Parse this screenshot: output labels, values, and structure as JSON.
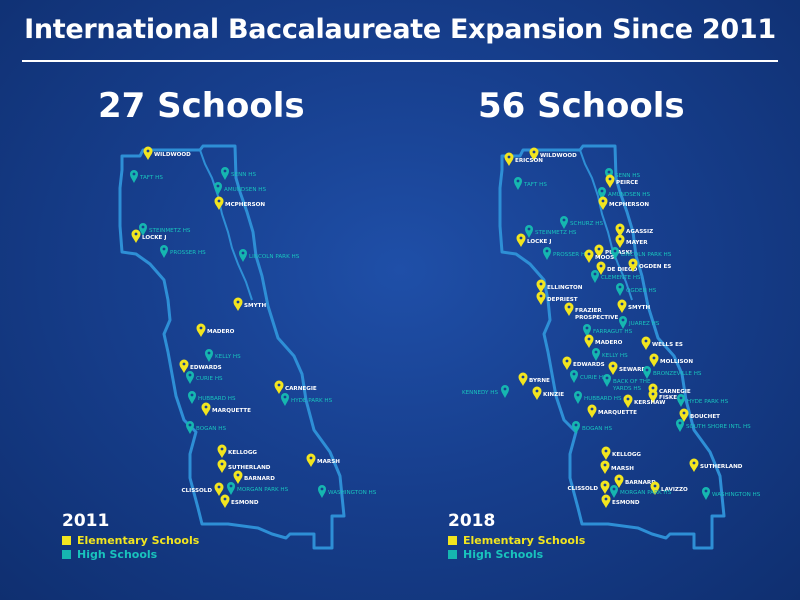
{
  "title": "International Baccalaureate Expansion Since 2011",
  "colors": {
    "elementary": "#f2e51f",
    "high": "#16b6b0",
    "outline": "#2e8fd6",
    "background": "#173f8e"
  },
  "legend": {
    "elementary": "Elementary Schools",
    "high": "High Schools"
  },
  "maps": [
    {
      "year": "2011",
      "count_label": "27 Schools",
      "schools": [
        {
          "name": "WILDWOOD",
          "type": "es"
        },
        {
          "name": "TAFT HS",
          "type": "hs"
        },
        {
          "name": "SENN HS",
          "type": "hs"
        },
        {
          "name": "AMUNDSEN HS",
          "type": "hs"
        },
        {
          "name": "MCPHERSON",
          "type": "es"
        },
        {
          "name": "STEINMETZ HS",
          "type": "hs"
        },
        {
          "name": "LOCKE J",
          "type": "es"
        },
        {
          "name": "PROSSER HS",
          "type": "hs"
        },
        {
          "name": "LINCOLN PARK HS",
          "type": "hs"
        },
        {
          "name": "SMYTH",
          "type": "es"
        },
        {
          "name": "MADERO",
          "type": "es"
        },
        {
          "name": "KELLY HS",
          "type": "hs"
        },
        {
          "name": "EDWARDS",
          "type": "es"
        },
        {
          "name": "CURIE HS",
          "type": "hs"
        },
        {
          "name": "CARNEGIE",
          "type": "es"
        },
        {
          "name": "HUBBARD HS",
          "type": "hs"
        },
        {
          "name": "HYDE PARK HS",
          "type": "hs"
        },
        {
          "name": "MARQUETTE",
          "type": "es"
        },
        {
          "name": "BOGAN HS",
          "type": "hs"
        },
        {
          "name": "KELLOGG",
          "type": "es"
        },
        {
          "name": "SUTHERLAND",
          "type": "es"
        },
        {
          "name": "MARSH",
          "type": "es"
        },
        {
          "name": "BARNARD",
          "type": "es"
        },
        {
          "name": "CLISSOLD",
          "type": "es"
        },
        {
          "name": "MORGAN PARK HS",
          "type": "hs"
        },
        {
          "name": "ESMOND",
          "type": "es"
        },
        {
          "name": "WASHINGTON HS",
          "type": "hs"
        }
      ]
    },
    {
      "year": "2018",
      "count_label": "56 Schools",
      "schools": [
        {
          "name": "WILDWOOD",
          "type": "es"
        },
        {
          "name": "ERICSON",
          "type": "es"
        },
        {
          "name": "SENN HS",
          "type": "hs"
        },
        {
          "name": "TAFT HS",
          "type": "hs"
        },
        {
          "name": "PEIRCE",
          "type": "es"
        },
        {
          "name": "AMUNDSEN HS",
          "type": "hs"
        },
        {
          "name": "MCPHERSON",
          "type": "es"
        },
        {
          "name": "SCHURZ HS",
          "type": "hs"
        },
        {
          "name": "STEINMETZ HS",
          "type": "hs"
        },
        {
          "name": "AGASSIZ",
          "type": "es"
        },
        {
          "name": "LOCKE J",
          "type": "es"
        },
        {
          "name": "MAYER",
          "type": "es"
        },
        {
          "name": "PULASKI",
          "type": "es"
        },
        {
          "name": "LINCOLN PARK HS",
          "type": "hs"
        },
        {
          "name": "PROSSER HS",
          "type": "hs"
        },
        {
          "name": "MOOS",
          "type": "es"
        },
        {
          "name": "DE DIEGO",
          "type": "es"
        },
        {
          "name": "OGDEN ES",
          "type": "es"
        },
        {
          "name": "CLEMENTE HS",
          "type": "hs"
        },
        {
          "name": "ELLINGTON",
          "type": "es"
        },
        {
          "name": "OGDEN HS",
          "type": "hs"
        },
        {
          "name": "DEPRIEST",
          "type": "es"
        },
        {
          "name": "FRAZIER PROSPECTIVE",
          "type": "es"
        },
        {
          "name": "SMYTH",
          "type": "es"
        },
        {
          "name": "JUAREZ HS",
          "type": "hs"
        },
        {
          "name": "FARRAGUT HS",
          "type": "hs"
        },
        {
          "name": "MADERO",
          "type": "es"
        },
        {
          "name": "WELLS ES",
          "type": "es"
        },
        {
          "name": "MOLLISON",
          "type": "es"
        },
        {
          "name": "KELLY HS",
          "type": "hs"
        },
        {
          "name": "EDWARDS",
          "type": "es"
        },
        {
          "name": "SEWARD",
          "type": "es"
        },
        {
          "name": "BRONZEVILLE HS",
          "type": "hs"
        },
        {
          "name": "CURIE HS",
          "type": "hs"
        },
        {
          "name": "BYRNE",
          "type": "es"
        },
        {
          "name": "BACK OF THE YARDS HS",
          "type": "hs"
        },
        {
          "name": "CARNEGIE",
          "type": "es"
        },
        {
          "name": "KENNEDY HS",
          "type": "hs"
        },
        {
          "name": "KINZIE",
          "type": "es"
        },
        {
          "name": "HUBBARD HS",
          "type": "hs"
        },
        {
          "name": "FISKE",
          "type": "es"
        },
        {
          "name": "HYDE PARK HS",
          "type": "hs"
        },
        {
          "name": "KERSHAW",
          "type": "es"
        },
        {
          "name": "MARQUETTE",
          "type": "es"
        },
        {
          "name": "BOUCHET",
          "type": "es"
        },
        {
          "name": "SOUTH SHORE INTL HS",
          "type": "hs"
        },
        {
          "name": "BOGAN HS",
          "type": "hs"
        },
        {
          "name": "KELLOGG",
          "type": "es"
        },
        {
          "name": "SUTHERLAND",
          "type": "es"
        },
        {
          "name": "MARSH",
          "type": "es"
        },
        {
          "name": "BARNARD",
          "type": "es"
        },
        {
          "name": "LAVIZZO",
          "type": "es"
        },
        {
          "name": "CLISSOLD",
          "type": "es"
        },
        {
          "name": "MORGAN PARK HS",
          "type": "hs"
        },
        {
          "name": "ESMOND",
          "type": "es"
        },
        {
          "name": "WASHINGTON HS",
          "type": "hs"
        }
      ]
    }
  ]
}
